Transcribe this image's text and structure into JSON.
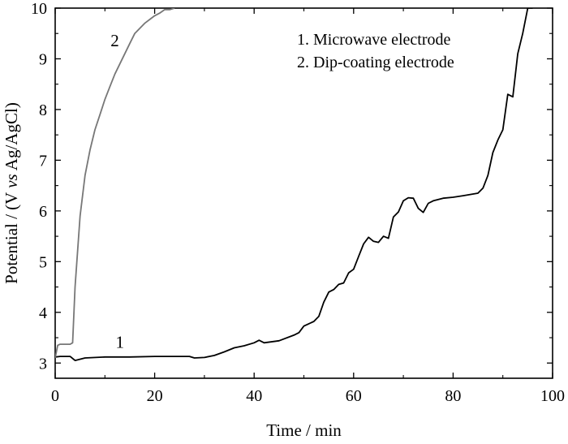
{
  "chart_data": {
    "type": "line",
    "xlabel": "Time / min",
    "ylabel": {
      "prefix": "Potential / (V ",
      "italic": "vs",
      "suffix": " Ag/AgCl)"
    },
    "xlim": [
      0,
      100
    ],
    "ylim": [
      2.7,
      10
    ],
    "x_ticks": [
      "0",
      "20",
      "40",
      "60",
      "80",
      "100"
    ],
    "x_tick_values": [
      0,
      20,
      40,
      60,
      80,
      100
    ],
    "y_ticks": [
      "3",
      "4",
      "5",
      "6",
      "7",
      "8",
      "9",
      "10"
    ],
    "y_tick_values": [
      3,
      4,
      5,
      6,
      7,
      8,
      9,
      10
    ],
    "grid": false,
    "legend": {
      "placement": "top-right",
      "entries": [
        "1. Microwave electrode",
        "2. Dip-coating electrode"
      ]
    },
    "series": [
      {
        "label": "1",
        "color": "#000000",
        "x": [
          0,
          1,
          3,
          4,
          6,
          10,
          15,
          20,
          25,
          27,
          28,
          30,
          32,
          34,
          36,
          38,
          40,
          41,
          42,
          45,
          48,
          49,
          50,
          52,
          53,
          54,
          55,
          56,
          57,
          58,
          59,
          60,
          61,
          62,
          63,
          64,
          65,
          66,
          67,
          68,
          69,
          70,
          71,
          72,
          73,
          74,
          75,
          76,
          78,
          80,
          82,
          85,
          86,
          87,
          88,
          89,
          90,
          91,
          92,
          93,
          94,
          95,
          96
        ],
        "y": [
          3.12,
          3.13,
          3.13,
          3.05,
          3.1,
          3.12,
          3.12,
          3.13,
          3.13,
          3.13,
          3.1,
          3.11,
          3.15,
          3.22,
          3.3,
          3.34,
          3.4,
          3.45,
          3.4,
          3.44,
          3.55,
          3.6,
          3.73,
          3.82,
          3.92,
          4.2,
          4.4,
          4.45,
          4.55,
          4.58,
          4.78,
          4.85,
          5.1,
          5.35,
          5.48,
          5.4,
          5.38,
          5.5,
          5.46,
          5.88,
          5.98,
          6.2,
          6.26,
          6.25,
          6.05,
          5.97,
          6.15,
          6.2,
          6.25,
          6.27,
          6.3,
          6.35,
          6.45,
          6.7,
          7.15,
          7.4,
          7.6,
          8.3,
          8.25,
          9.1,
          9.5,
          10.0,
          10.0
        ],
        "annotation": "1",
        "annotation_x": 13,
        "annotation_y": 3.3
      },
      {
        "label": "2",
        "color": "#777777",
        "x": [
          0,
          0.5,
          1,
          2,
          3,
          3.5,
          4,
          5,
          6,
          7,
          8,
          9,
          10,
          11,
          12,
          13,
          14,
          15,
          16,
          18,
          20,
          21,
          22,
          23,
          24
        ],
        "y": [
          3.1,
          3.35,
          3.37,
          3.37,
          3.37,
          3.4,
          4.5,
          5.9,
          6.7,
          7.2,
          7.6,
          7.9,
          8.2,
          8.45,
          8.7,
          8.9,
          9.1,
          9.3,
          9.5,
          9.7,
          9.85,
          9.9,
          9.97,
          9.97,
          10.0
        ],
        "annotation": "2",
        "annotation_x": 12,
        "annotation_y": 9.25
      }
    ]
  }
}
